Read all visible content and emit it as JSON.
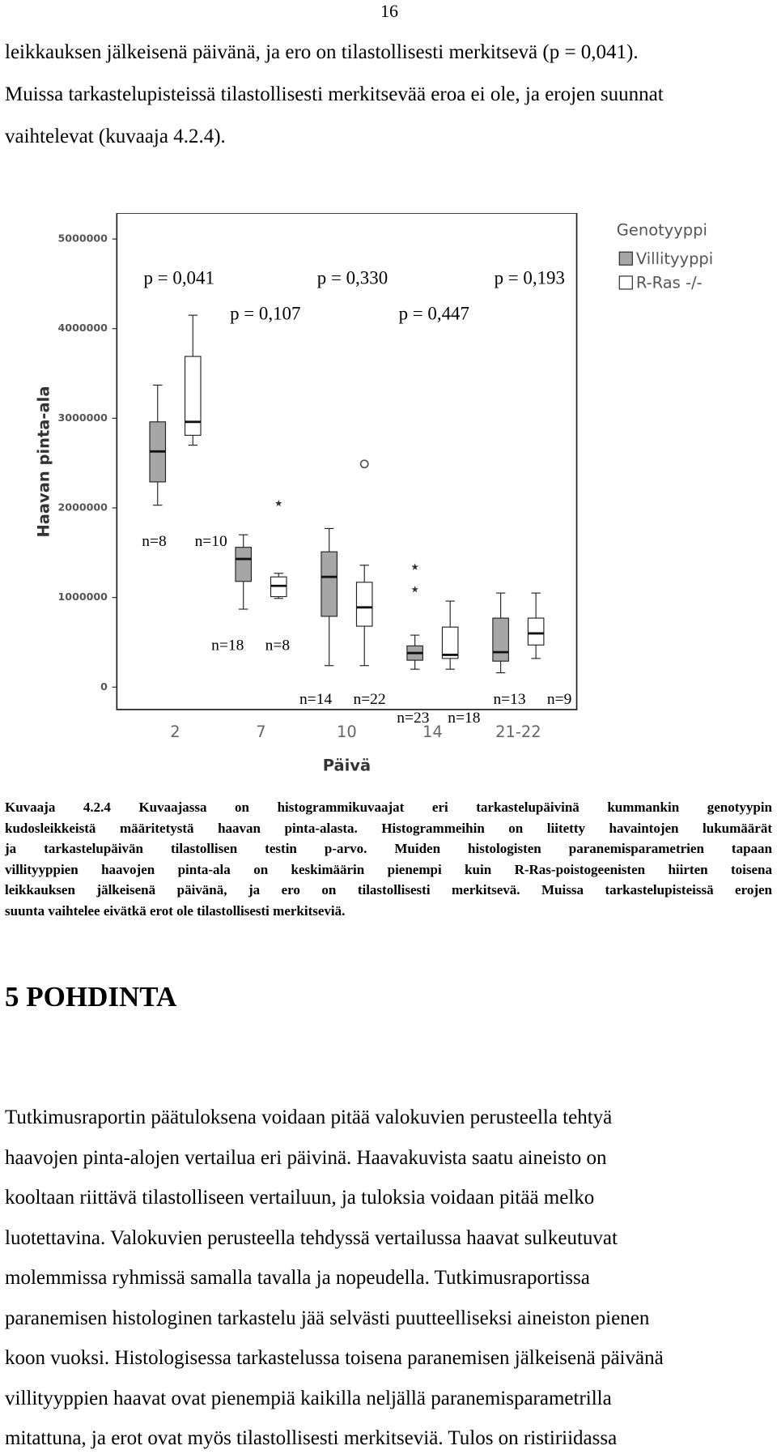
{
  "page_number": "16",
  "paragraph_1": [
    "leikkauksen jälkeisenä päivänä, ja ero on tilastollisesti merkitsevä (p = 0,041).",
    "Muissa tarkastelupisteissä tilastollisesti merkitsevää eroa ei ole, ja erojen suunnat",
    "vaihtelevat (kuvaaja 4.2.4)."
  ],
  "chart_data": {
    "type": "box",
    "y_label": "Haavan pinta-ala",
    "x_label": "Päivä",
    "categories": [
      "2",
      "7",
      "10",
      "14",
      "21-22"
    ],
    "ylim": [
      -250000,
      5290000
    ],
    "yticks": [
      0,
      1000000,
      2000000,
      3000000,
      4000000,
      5000000
    ],
    "legend_title": "Genotyyppi",
    "legend_position": "right",
    "series": [
      {
        "name": "Villityyppi",
        "color": "#a6a6a6",
        "stats": [
          {
            "whislo": 2030000,
            "q1": 2290000,
            "med": 2630000,
            "q3": 2960000,
            "whishi": 3370000,
            "outliers": [],
            "extremes": []
          },
          {
            "whislo": 870000,
            "q1": 1180000,
            "med": 1430000,
            "q3": 1560000,
            "whishi": 1700000,
            "outliers": [],
            "extremes": []
          },
          {
            "whislo": 240000,
            "q1": 790000,
            "med": 1230000,
            "q3": 1510000,
            "whishi": 1770000,
            "outliers": [],
            "extremes": []
          },
          {
            "whislo": 200000,
            "q1": 300000,
            "med": 380000,
            "q3": 460000,
            "whishi": 580000,
            "outliers": [],
            "extremes": [
              1090000,
              1340000
            ]
          },
          {
            "whislo": 160000,
            "q1": 290000,
            "med": 390000,
            "q3": 770000,
            "whishi": 1050000,
            "outliers": [],
            "extremes": []
          }
        ]
      },
      {
        "name": "R-Ras -/-",
        "color": "#ffffff",
        "stats": [
          {
            "whislo": 2700000,
            "q1": 2810000,
            "med": 2960000,
            "q3": 3690000,
            "whishi": 4150000,
            "outliers": [],
            "extremes": []
          },
          {
            "whislo": 990000,
            "q1": 1010000,
            "med": 1130000,
            "q3": 1230000,
            "whishi": 1270000,
            "outliers": [],
            "extremes": [
              2050000
            ]
          },
          {
            "whislo": 240000,
            "q1": 680000,
            "med": 890000,
            "q3": 1170000,
            "whishi": 1360000,
            "outliers": [
              2490000
            ],
            "extremes": []
          },
          {
            "whislo": 200000,
            "q1": 320000,
            "med": 360000,
            "q3": 670000,
            "whishi": 960000,
            "outliers": [],
            "extremes": []
          },
          {
            "whislo": 320000,
            "q1": 470000,
            "med": 600000,
            "q3": 770000,
            "whishi": 1050000,
            "outliers": [],
            "extremes": []
          }
        ]
      }
    ],
    "p_values": [
      "p = 0,041",
      "p = 0,330",
      "p = 0,193",
      "p = 0,107",
      "p = 0,447"
    ],
    "n_labels": [
      "n=8",
      "n=10",
      "n=18",
      "n=8",
      "n=14",
      "n=22",
      "n=23",
      "n=18",
      "n=13",
      "n=9"
    ]
  },
  "caption": [
    "Kuvaaja 4.2.4 Kuvaajassa on histogrammikuvaajat eri tarkastelupäivinä kummankin genotyypin",
    "kudosleikkeistä määritetystä haavan pinta-alasta. Histogrammeihin on liitetty havaintojen lukumäärät",
    "ja tarkastelupäivän tilastollisen testin p-arvo. Muiden histologisten paranemisparametrien tapaan",
    "villityyppien haavojen pinta-ala on keskimäärin pienempi kuin R-Ras-poistogeenisten hiirten toisena",
    "leikkauksen jälkeisenä päivänä, ja ero on tilastollisesti merkitsevä. Muissa tarkastelupisteissä erojen",
    "suunta vaihtelee eivätkä erot ole tilastollisesti merkitseviä."
  ],
  "heading": "5 POHDINTA",
  "paragraph_2": [
    "Tutkimusraportin päätuloksena voidaan pitää valokuvien perusteella tehtyä",
    "haavojen pinta-alojen vertailua eri päivinä. Haavakuvista saatu aineisto on",
    "kooltaan riittävä tilastolliseen vertailuun, ja tuloksia voidaan pitää melko",
    "luotettavina. Valokuvien perusteella tehdyssä vertailussa haavat sulkeutuvat",
    "molemmissa ryhmissä samalla tavalla ja nopeudella. Tutkimusraportissa",
    "paranemisen histologinen tarkastelu jää selvästi puutteelliseksi aineiston pienen",
    "koon vuoksi. Histologisessa tarkastelussa toisena paranemisen jälkeisenä päivänä",
    "villityyppien haavat ovat pienempiä kaikilla neljällä paranemisparametrilla",
    "mitattuna, ja erot ovat myös tilastollisesti merkitseviä. Tulos on ristiriidassa"
  ]
}
